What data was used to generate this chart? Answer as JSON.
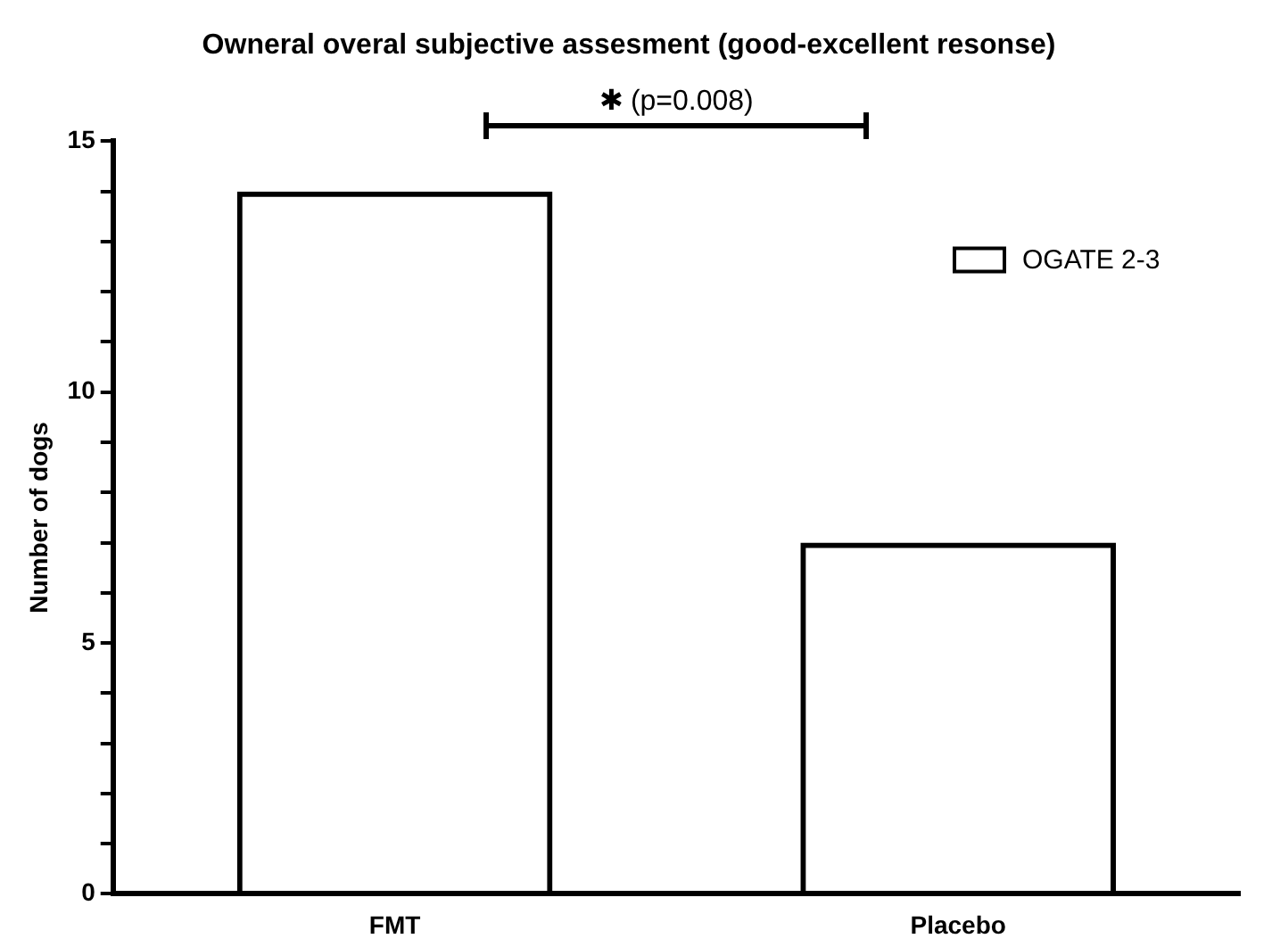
{
  "chart_data": {
    "type": "bar",
    "title": "Owneral overal subjective assesment (good-excellent resonse)",
    "ylabel": "Number of dogs",
    "categories": [
      "FMT",
      "Placebo"
    ],
    "series": [
      {
        "name": "OGATE 2-3",
        "color": "#000000",
        "values": [
          14,
          7
        ]
      }
    ],
    "ylim": [
      0,
      15
    ],
    "yticks": [
      0,
      {
        "value": 1,
        "label": null
      },
      {
        "value": 2,
        "label": null
      },
      {
        "value": 3,
        "label": null
      },
      {
        "value": 4,
        "label": null
      },
      5,
      {
        "value": 6,
        "label": null
      },
      {
        "value": 7,
        "label": null
      },
      {
        "value": 8,
        "label": null
      },
      {
        "value": 9,
        "label": null
      },
      10,
      {
        "value": 11,
        "label": null
      },
      {
        "value": 12,
        "label": null
      },
      {
        "value": 13,
        "label": null
      },
      {
        "value": 14,
        "label": null
      },
      15
    ],
    "annotations": [
      "✱ (p=0.008)"
    ],
    "grid": false,
    "legend": "top right"
  }
}
